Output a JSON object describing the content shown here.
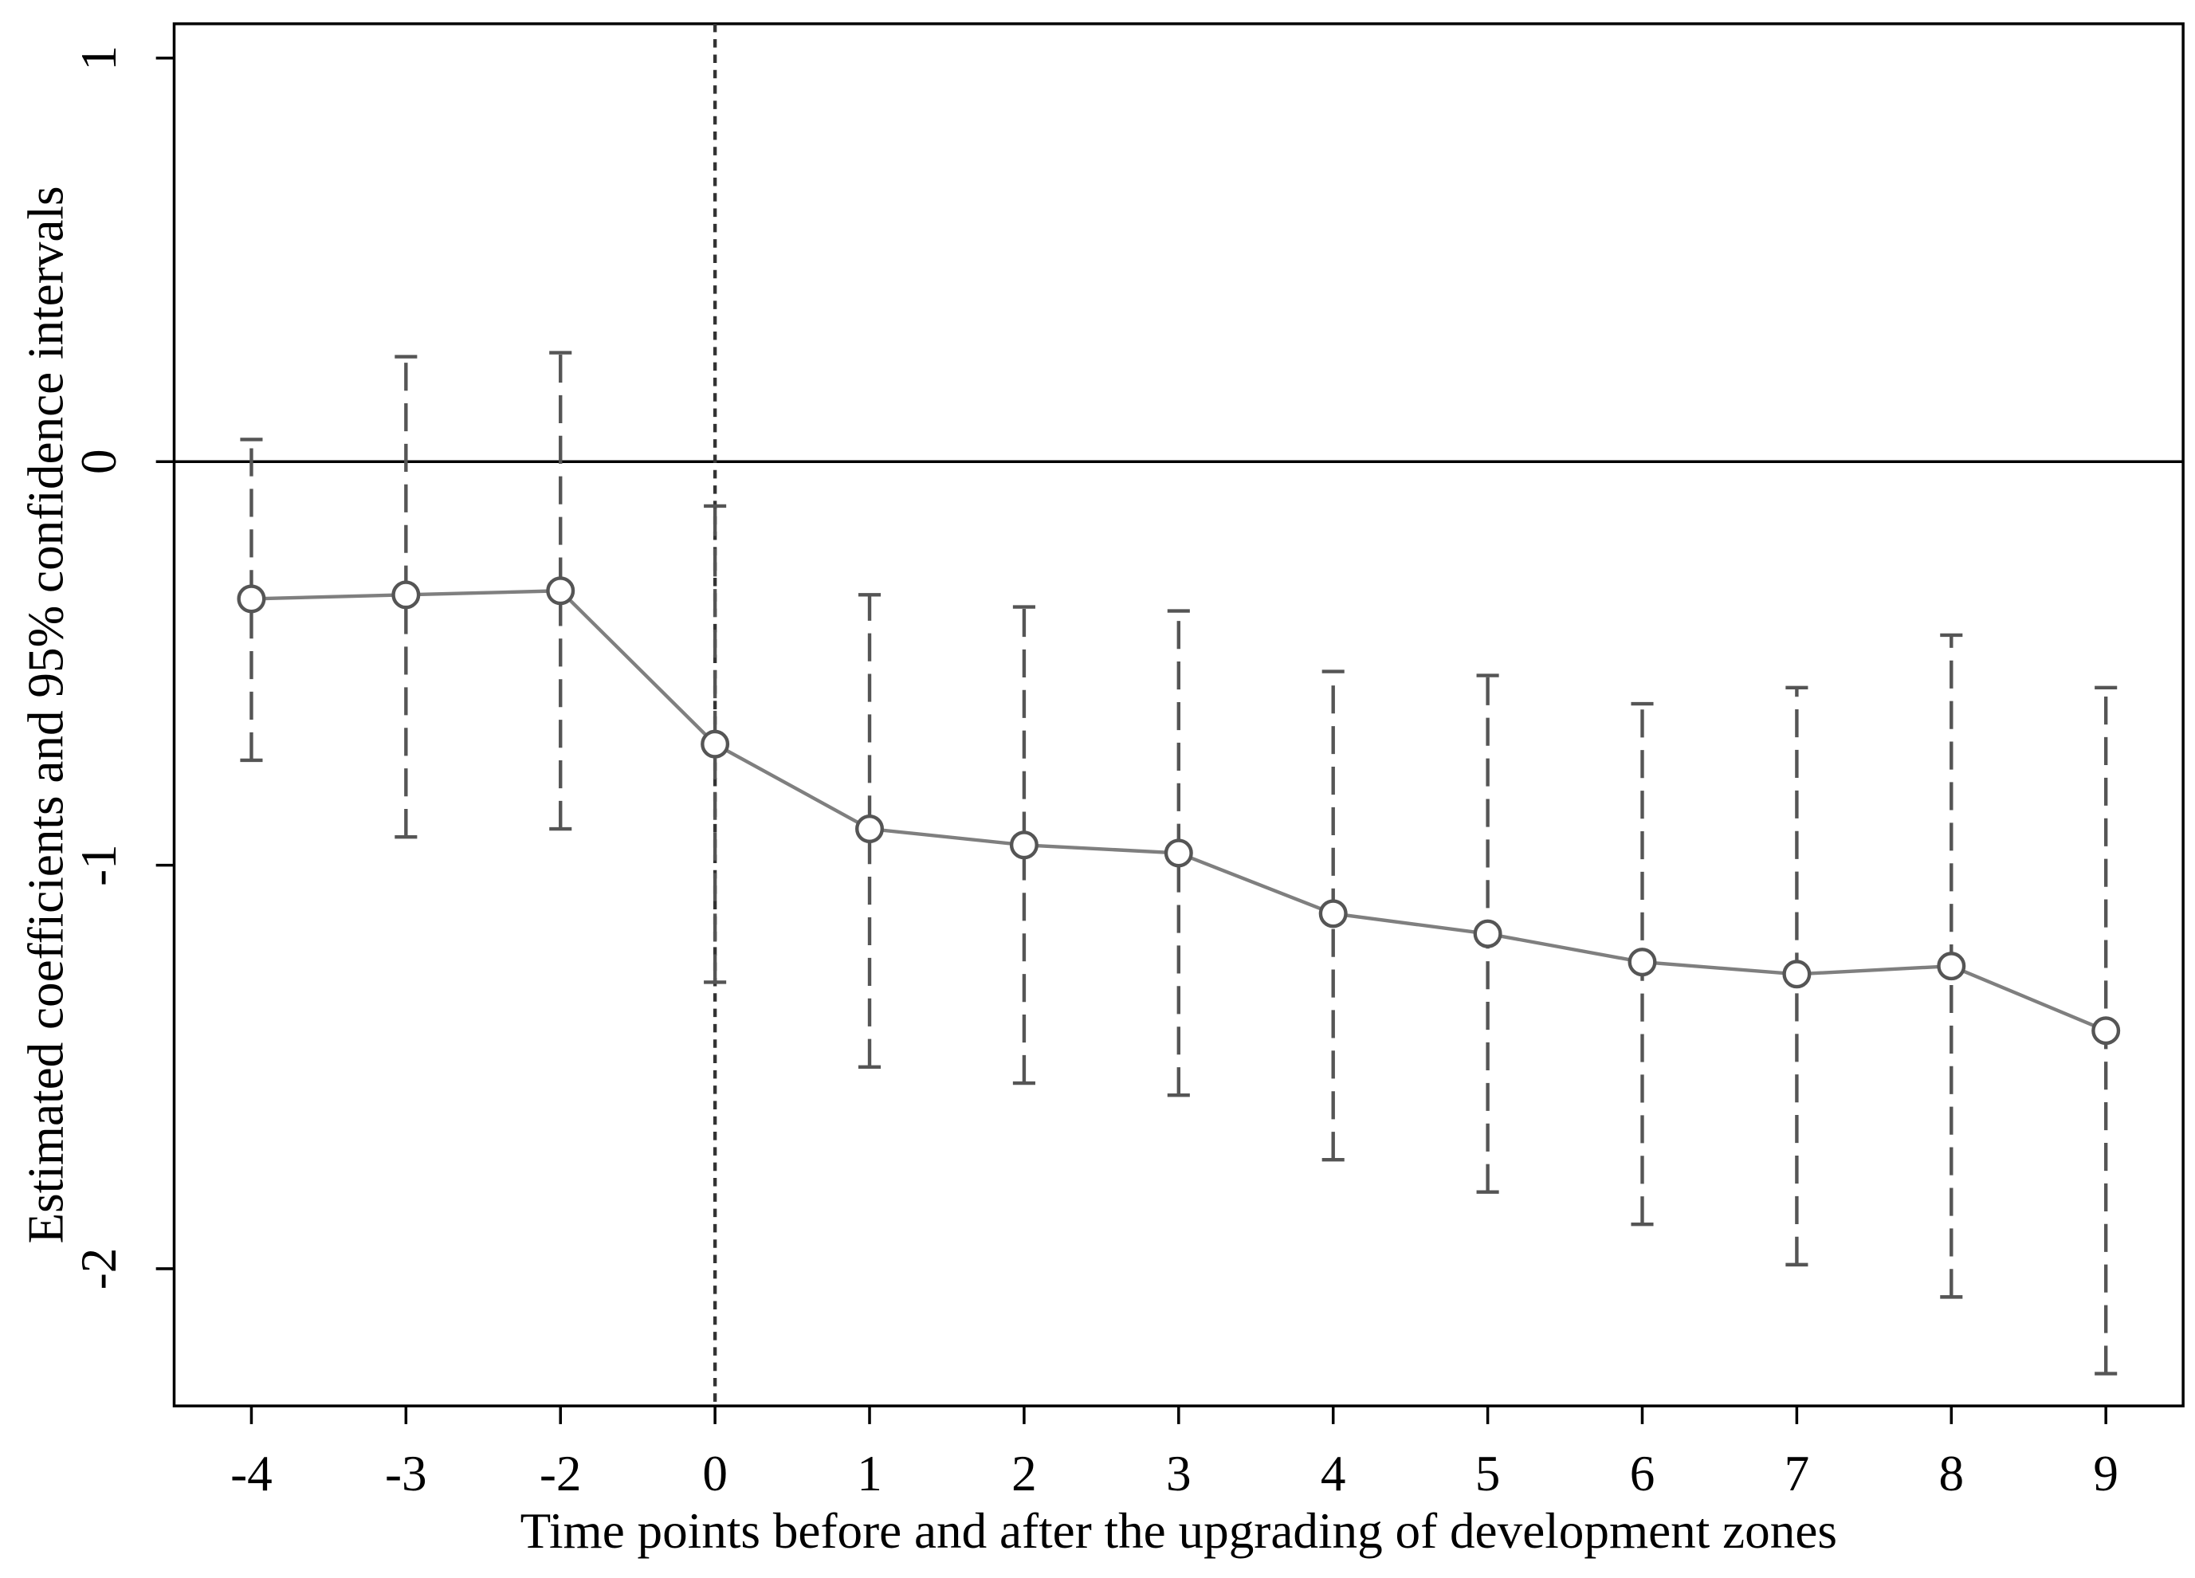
{
  "chart_data": {
    "type": "errorbar",
    "x_label": "Time points before and after the upgrading of development zones",
    "y_label": "Estimated coefficients and 95% confidence intervals",
    "categories": [
      "-4",
      "-3",
      "-2",
      "0",
      "1",
      "2",
      "3",
      "4",
      "5",
      "6",
      "7",
      "8",
      "9"
    ],
    "series": [
      {
        "color": "#7f7f7f",
        "values": [
          -0.34,
          -0.33,
          -0.32,
          -0.7,
          -0.91,
          -0.95,
          -0.97,
          -1.12,
          -1.17,
          -1.24,
          -1.27,
          -1.25,
          -1.41
        ],
        "upper": [
          0.055,
          0.26,
          0.27,
          -0.11,
          -0.33,
          -0.36,
          -0.37,
          -0.52,
          -0.53,
          -0.6,
          -0.56,
          -0.43,
          -0.56
        ],
        "lower": [
          -0.74,
          -0.93,
          -0.91,
          -1.29,
          -1.5,
          -1.54,
          -1.57,
          -1.73,
          -1.81,
          -1.89,
          -1.99,
          -2.07,
          -2.26
        ]
      }
    ],
    "ylim": [
      -2.34,
      1.085
    ],
    "yticks": [
      -2,
      -1,
      0,
      1
    ],
    "hline": 0,
    "vline_category": "0"
  }
}
